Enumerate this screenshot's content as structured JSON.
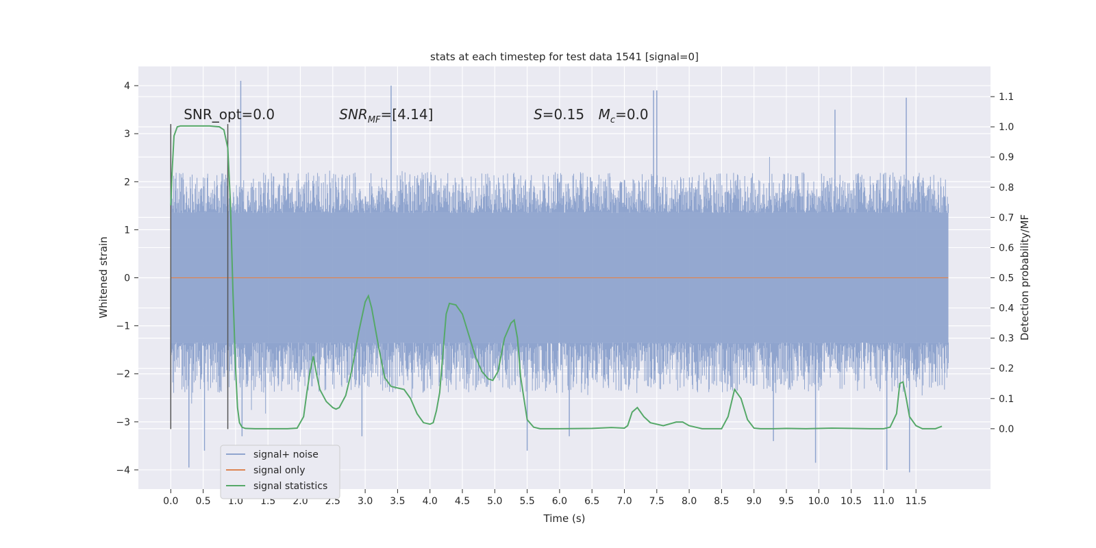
{
  "chart_data": {
    "type": "line",
    "title": "stats at each timestep for test data 1541 [signal=0]",
    "xlabel": "Time (s)",
    "ylabel": "Whitened strain",
    "y2label": "Detection probability/MF",
    "xlim": [
      -0.5,
      12.65
    ],
    "ylim": [
      -4.4,
      4.4
    ],
    "y2lim": [
      -0.2,
      1.2
    ],
    "x_ticks": [
      0.0,
      0.5,
      1.0,
      1.5,
      2.0,
      2.5,
      3.0,
      3.5,
      4.0,
      4.5,
      5.0,
      5.5,
      6.0,
      6.5,
      7.0,
      7.5,
      8.0,
      8.5,
      9.0,
      9.5,
      10.0,
      10.5,
      11.0,
      11.5
    ],
    "x_tick_labels": [
      "0.0",
      "0.5",
      "1.0",
      "1.5",
      "2.0",
      "2.5",
      "3.0",
      "3.5",
      "4.0",
      "4.5",
      "5.0",
      "5.5",
      "6.0",
      "6.5",
      "7.0",
      "7.5",
      "8.0",
      "8.5",
      "9.0",
      "9.5",
      "10.0",
      "10.5",
      "11.0",
      "11.5"
    ],
    "y_ticks": [
      -4,
      -3,
      -2,
      -1,
      0,
      1,
      2,
      3,
      4
    ],
    "y_tick_labels": [
      "−4",
      "−3",
      "−2",
      "−1",
      "0",
      "1",
      "2",
      "3",
      "4"
    ],
    "y2_ticks": [
      0.0,
      0.1,
      0.2,
      0.3,
      0.4,
      0.5,
      0.6,
      0.7,
      0.8,
      0.9,
      1.0,
      1.1
    ],
    "y2_tick_labels": [
      "0.0",
      "0.1",
      "0.2",
      "0.3",
      "0.4",
      "0.5",
      "0.6",
      "0.7",
      "0.8",
      "0.9",
      "1.0",
      "1.1"
    ],
    "grid": true,
    "legend_position": "lower-left",
    "legend": [
      "signal+ noise",
      "signal only",
      "signal statistics"
    ],
    "annotations": [
      {
        "text": "SNR_opt=0.0",
        "x": 0.2,
        "y": 3.3
      },
      {
        "text": "SNR",
        "sub": "MF",
        "tail": "=[4.14]",
        "x": 2.6,
        "y": 3.3
      },
      {
        "text": "S",
        "tail": "=0.15",
        "x": 5.6,
        "y": 3.3
      },
      {
        "text": "M",
        "sub": "c",
        "tail": "=0.0",
        "x": 6.6,
        "y": 3.3
      }
    ],
    "markers": [
      {
        "x": 0.0,
        "y_range": [
          -3.15,
          3.2
        ]
      },
      {
        "x": 0.88,
        "y_range": [
          -3.15,
          3.2
        ]
      }
    ],
    "series": [
      {
        "name": "signal+ noise",
        "axis": "left",
        "color": "#8fa4ce",
        "x_range": [
          0.0,
          12.0
        ],
        "envelope_mean": [
          1.35,
          -1.35
        ],
        "envelope_spread": [
          2.2,
          -2.4
        ],
        "spikes": [
          [
            0.28,
            -3.95
          ],
          [
            0.52,
            -3.6
          ],
          [
            1.08,
            4.1
          ],
          [
            1.1,
            -3.3
          ],
          [
            2.95,
            -3.3
          ],
          [
            3.4,
            4.0
          ],
          [
            5.5,
            -3.6
          ],
          [
            6.15,
            -3.3
          ],
          [
            7.45,
            3.9
          ],
          [
            7.5,
            3.9
          ],
          [
            9.3,
            -3.4
          ],
          [
            9.95,
            -3.85
          ],
          [
            10.25,
            3.5
          ],
          [
            11.05,
            -4.0
          ],
          [
            11.35,
            3.75
          ],
          [
            11.4,
            -4.05
          ]
        ]
      },
      {
        "name": "signal only",
        "axis": "left",
        "color": "#dd8452",
        "x": [
          0.0,
          12.0
        ],
        "values": [
          0.0,
          0.0
        ]
      },
      {
        "name": "signal statistics",
        "axis": "right",
        "color": "#55a868",
        "x": [
          0.0,
          0.02,
          0.05,
          0.1,
          0.15,
          0.25,
          0.4,
          0.6,
          0.75,
          0.82,
          0.88,
          0.92,
          0.96,
          1.0,
          1.03,
          1.06,
          1.1,
          1.15,
          1.3,
          1.6,
          1.8,
          1.95,
          2.05,
          2.1,
          2.15,
          2.2,
          2.25,
          2.3,
          2.4,
          2.5,
          2.55,
          2.6,
          2.7,
          2.8,
          2.9,
          3.0,
          3.05,
          3.1,
          3.2,
          3.3,
          3.4,
          3.5,
          3.6,
          3.7,
          3.8,
          3.9,
          4.0,
          4.05,
          4.1,
          4.15,
          4.2,
          4.25,
          4.3,
          4.4,
          4.5,
          4.6,
          4.7,
          4.8,
          4.9,
          4.97,
          5.05,
          5.15,
          5.25,
          5.3,
          5.35,
          5.4,
          5.5,
          5.6,
          5.7,
          6.0,
          6.5,
          6.8,
          7.0,
          7.05,
          7.12,
          7.2,
          7.3,
          7.4,
          7.6,
          7.8,
          7.9,
          8.0,
          8.2,
          8.5,
          8.6,
          8.7,
          8.8,
          8.9,
          9.0,
          9.1,
          9.3,
          9.5,
          9.8,
          10.2,
          10.5,
          10.8,
          11.0,
          11.1,
          11.2,
          11.25,
          11.3,
          11.35,
          11.4,
          11.5,
          11.6,
          11.8,
          11.9
        ],
        "values": [
          0.74,
          0.85,
          0.97,
          1.0,
          1.003,
          1.003,
          1.003,
          1.003,
          1.0,
          0.99,
          0.93,
          0.75,
          0.45,
          0.2,
          0.07,
          0.02,
          0.005,
          0.001,
          0.0,
          0.0,
          0.0,
          0.002,
          0.04,
          0.12,
          0.19,
          0.24,
          0.18,
          0.13,
          0.09,
          0.07,
          0.065,
          0.07,
          0.11,
          0.2,
          0.32,
          0.42,
          0.44,
          0.4,
          0.28,
          0.17,
          0.14,
          0.135,
          0.13,
          0.1,
          0.05,
          0.02,
          0.015,
          0.02,
          0.06,
          0.12,
          0.25,
          0.38,
          0.415,
          0.41,
          0.38,
          0.31,
          0.24,
          0.19,
          0.165,
          0.16,
          0.19,
          0.3,
          0.35,
          0.36,
          0.3,
          0.17,
          0.03,
          0.005,
          0.0,
          0.0,
          0.001,
          0.004,
          0.002,
          0.01,
          0.055,
          0.07,
          0.04,
          0.02,
          0.01,
          0.022,
          0.022,
          0.01,
          0.0,
          0.0,
          0.04,
          0.13,
          0.1,
          0.03,
          0.002,
          0.0,
          0.0,
          0.001,
          0.0,
          0.002,
          0.001,
          0.0,
          0.0,
          0.005,
          0.05,
          0.15,
          0.155,
          0.1,
          0.04,
          0.01,
          0.0,
          0.0,
          0.008
        ]
      }
    ]
  }
}
